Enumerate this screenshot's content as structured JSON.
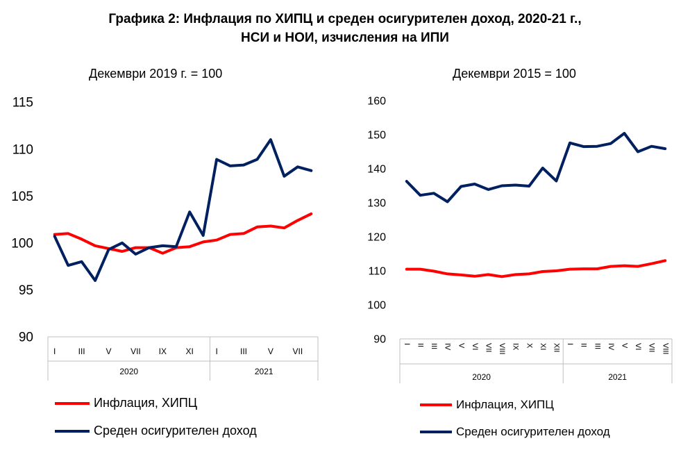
{
  "title": {
    "line1": "Графика 2: Инфлация по ХИПЦ и среден осигурителен доход, 2020-21 г.,",
    "line2": "НСИ и НОИ, изчисления на ИПИ"
  },
  "colors": {
    "inflation": "#ff0000",
    "income": "#002060",
    "axis": "#bfbfbf"
  },
  "chart_data": [
    {
      "type": "line",
      "subtitle": "Декември 2019 г. = 100",
      "ylim": [
        90,
        115
      ],
      "yticks": [
        "115",
        "110",
        "105",
        "100",
        "95",
        "90"
      ],
      "x_labels": [
        "I",
        "",
        "III",
        "",
        "V",
        "",
        "VII",
        "",
        "IX",
        "",
        "XI",
        "",
        "I",
        "",
        "III",
        "",
        "V",
        "",
        "VII",
        ""
      ],
      "groups": [
        {
          "label": "2020",
          "count": 12
        },
        {
          "label": "2021",
          "count": 8
        }
      ],
      "series": [
        {
          "name": "Инфлация, ХИПЦ",
          "values": [
            100.9,
            101.0,
            100.4,
            99.7,
            99.4,
            99.1,
            99.5,
            99.5,
            98.9,
            99.5,
            99.6,
            100.1,
            100.3,
            100.9,
            101.0,
            101.7,
            101.8,
            101.6,
            102.4,
            103.1
          ]
        },
        {
          "name": "Среден осигурителен доход",
          "values": [
            100.7,
            97.6,
            98.0,
            96.0,
            99.3,
            100.0,
            98.8,
            99.5,
            99.7,
            99.6,
            103.3,
            100.8,
            108.9,
            108.2,
            108.3,
            108.9,
            111.0,
            107.1,
            108.1,
            107.7
          ]
        }
      ]
    },
    {
      "type": "line",
      "subtitle": "Декември 2015 = 100",
      "ylim": [
        90,
        160
      ],
      "yticks": [
        "160",
        "150",
        "140",
        "130",
        "120",
        "110",
        "100",
        "90"
      ],
      "x_labels": [
        "I",
        "II",
        "III",
        "IV",
        "V",
        "VI",
        "VII",
        "VIII",
        "IX",
        "X",
        "XI",
        "XII",
        "I",
        "II",
        "III",
        "IV",
        "V",
        "VI",
        "VII",
        "VIII"
      ],
      "groups": [
        {
          "label": "2020",
          "count": 12
        },
        {
          "label": "2021",
          "count": 8
        }
      ],
      "series": [
        {
          "name": "Инфлация, ХИПЦ",
          "values": [
            110.5,
            110.5,
            109.9,
            109.1,
            108.8,
            108.4,
            108.9,
            108.3,
            108.9,
            109.1,
            109.8,
            110.0,
            110.5,
            110.6,
            110.6,
            111.3,
            111.5,
            111.3,
            112.1,
            113.0
          ]
        },
        {
          "name": "Среден осигурителен доход",
          "values": [
            136.3,
            132.2,
            132.8,
            130.3,
            134.8,
            135.5,
            133.9,
            135.0,
            135.2,
            134.9,
            140.2,
            136.4,
            147.6,
            146.5,
            146.6,
            147.4,
            150.4,
            145.0,
            146.6,
            145.9
          ]
        }
      ]
    }
  ],
  "legends": [
    {
      "inflation_label": "Инфлация, ХИПЦ",
      "income_label": "Среден осигурителен доход"
    },
    {
      "inflation_label": "Инфлация, ХИПЦ",
      "income_label": "Среден осигурителен доход"
    }
  ]
}
